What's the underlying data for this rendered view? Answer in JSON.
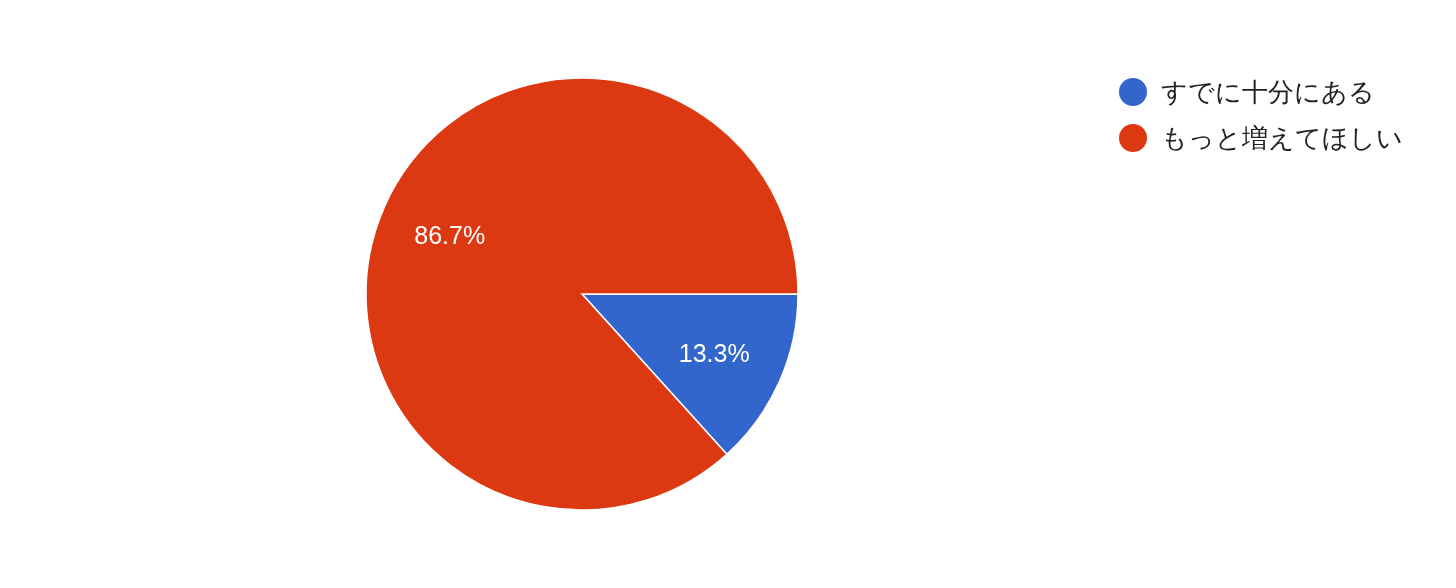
{
  "chart_data": {
    "type": "pie",
    "categories": [
      "すでに十分にある",
      "もっと増えてほしい"
    ],
    "values": [
      13.3,
      86.7
    ],
    "colors": [
      "#3366cc",
      "#dc3912"
    ],
    "value_labels": [
      "13.3%",
      "86.7%"
    ],
    "legend": "top right"
  }
}
